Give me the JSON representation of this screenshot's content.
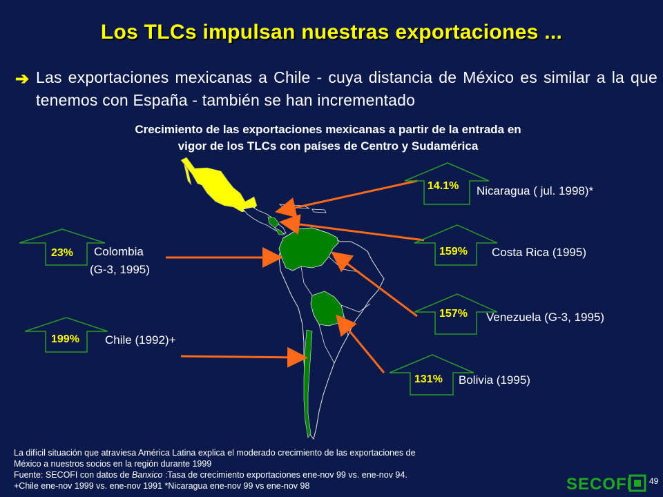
{
  "title": "Los TLCs impulsan nuestras exportaciones ...",
  "bullet": {
    "icon": "right-arrow-icon",
    "text": "Las exportaciones mexicanas a Chile - cuya distancia de México es similar a la que tenemos con España - también se han incrementado"
  },
  "subtitle": {
    "line1": "Crecimiento de las exportaciones mexicanas a partir de la entrada en",
    "line2": "vigor de los TLCs con países de Centro y Sudamérica"
  },
  "countries": [
    {
      "pct": "14.1%",
      "label": "Nicaragua ( jul. 1998)*"
    },
    {
      "pct": "159%",
      "label": "Costa Rica (1995)"
    },
    {
      "pct": "157%",
      "label": "Venezuela  (G-3, 1995)"
    },
    {
      "pct": "131%",
      "label": "Bolivia (1995)"
    },
    {
      "pct": "23%",
      "label": "Colombia",
      "label2": "(G-3, 1995)"
    },
    {
      "pct": "199%",
      "label": "Chile (1992)+"
    }
  ],
  "footer": {
    "line1": "La difícil situación que atraviesa América Latina explica el moderado crecimiento de las exportaciones de",
    "line2": "México a nuestros socios en la región durante 1999",
    "line3_prefix": "Fuente: SECOFI con datos de ",
    "line3_italic": "Banxico",
    "line3_suffix": " :Tasa  de crecimiento exportaciones ene-nov 99 vs. ene-nov 94.",
    "line4": "+Chile ene-nov 1999 vs. ene-nov 1991 *Nicaragua ene-nov 99 vs ene-nov 98"
  },
  "logo": "SECOFI",
  "page_number": "49",
  "colors": {
    "background": "#0b1a4a",
    "title": "#ffff00",
    "mexico": "#ffff00",
    "partners": "#008000",
    "arrows": "#ff6a1a",
    "arrowbox": "#2a9a2a"
  }
}
